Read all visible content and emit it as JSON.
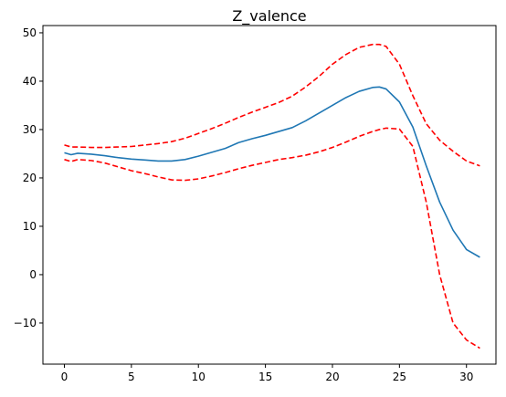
{
  "chart_data": {
    "type": "line",
    "title": "Z_valence",
    "xlabel": "",
    "ylabel": "",
    "xlim": [
      -1.6,
      32.2
    ],
    "ylim": [
      -18.5,
      51.5
    ],
    "xticks": [
      0,
      5,
      10,
      15,
      20,
      25,
      30
    ],
    "yticks": [
      -10,
      0,
      10,
      20,
      30,
      40,
      50
    ],
    "grid": false,
    "legend": "none",
    "x": [
      0,
      0.5,
      1,
      2,
      3,
      4,
      5,
      6,
      7,
      8,
      9,
      10,
      11,
      12,
      13,
      14,
      15,
      16,
      17,
      18,
      19,
      20,
      21,
      22,
      23,
      23.5,
      24,
      25,
      26,
      27,
      28,
      29,
      30,
      31
    ],
    "series": [
      {
        "color": "#1f77b4",
        "dash": "solid",
        "values": [
          25.2,
          24.8,
          25.1,
          24.9,
          24.6,
          24.2,
          23.9,
          23.7,
          23.5,
          23.5,
          23.8,
          24.5,
          25.3,
          26.1,
          27.3,
          28.1,
          28.8,
          29.6,
          30.4,
          31.8,
          33.4,
          35.0,
          36.6,
          37.9,
          38.7,
          38.8,
          38.4,
          35.7,
          30.5,
          22.5,
          15.0,
          9.2,
          5.2,
          3.6
        ]
      },
      {
        "color": "#ff0000",
        "dash": "dashed",
        "values": [
          26.8,
          26.4,
          26.4,
          26.3,
          26.3,
          26.4,
          26.5,
          26.8,
          27.1,
          27.5,
          28.2,
          29.2,
          30.2,
          31.3,
          32.5,
          33.6,
          34.6,
          35.6,
          36.9,
          38.8,
          41.0,
          43.5,
          45.5,
          47.0,
          47.6,
          47.6,
          47.2,
          43.5,
          37.0,
          31.2,
          27.8,
          25.5,
          23.5,
          22.5
        ]
      },
      {
        "color": "#ff0000",
        "dash": "dashed",
        "values": [
          23.8,
          23.4,
          23.8,
          23.6,
          23.1,
          22.3,
          21.5,
          20.9,
          20.2,
          19.6,
          19.5,
          19.8,
          20.4,
          21.1,
          21.9,
          22.6,
          23.2,
          23.8,
          24.2,
          24.7,
          25.4,
          26.3,
          27.4,
          28.6,
          29.6,
          30.0,
          30.3,
          30.1,
          26.5,
          15.0,
          0.0,
          -10.0,
          -13.5,
          -15.2
        ]
      }
    ]
  }
}
